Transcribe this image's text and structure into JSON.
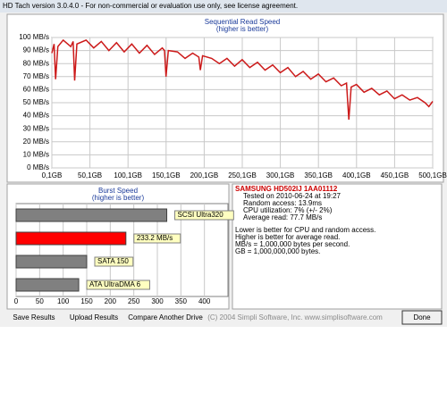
{
  "window": {
    "title": "HD Tach version 3.0.4.0  - For non-commercial or evaluation use only, see license agreement."
  },
  "chart_data": [
    {
      "type": "line",
      "title": "Sequential Read Speed",
      "subtitle": "(higher is better)",
      "color": "#cc1a1a",
      "x": [
        0.1,
        3,
        5,
        8,
        15,
        25,
        28,
        30,
        33,
        45,
        55,
        65,
        75,
        85,
        95,
        105,
        115,
        125,
        135,
        145,
        148,
        150,
        153,
        165,
        175,
        185,
        193,
        195,
        198,
        210,
        220,
        230,
        240,
        250,
        260,
        270,
        280,
        290,
        300,
        310,
        320,
        330,
        340,
        350,
        360,
        370,
        380,
        387,
        390,
        393,
        400,
        410,
        420,
        430,
        440,
        450,
        460,
        470,
        480,
        490,
        495,
        500.1
      ],
      "values": [
        88,
        95,
        68,
        93,
        98,
        93,
        97,
        67,
        95,
        98,
        92,
        97,
        90,
        96,
        89,
        95,
        88,
        94,
        87,
        92,
        90,
        70,
        90,
        89,
        84,
        88,
        85,
        75,
        86,
        84,
        80,
        84,
        78,
        83,
        77,
        81,
        75,
        79,
        73,
        77,
        70,
        74,
        68,
        72,
        66,
        69,
        63,
        65,
        37,
        62,
        64,
        58,
        61,
        56,
        59,
        53,
        56,
        52,
        54,
        50,
        47,
        51
      ],
      "xlim": [
        0.1,
        500.1
      ],
      "xticks": [
        {
          "value": 0.1,
          "label": "0,1GB"
        },
        {
          "value": 50.1,
          "label": "50,1GB"
        },
        {
          "value": 100.1,
          "label": "100,1GB"
        },
        {
          "value": 150.1,
          "label": "150,1GB"
        },
        {
          "value": 200.1,
          "label": "200,1GB"
        },
        {
          "value": 250.1,
          "label": "250,1GB"
        },
        {
          "value": 300.1,
          "label": "300,1GB"
        },
        {
          "value": 350.1,
          "label": "350,1GB"
        },
        {
          "value": 400.1,
          "label": "400,1GB"
        },
        {
          "value": 450.1,
          "label": "450,1GB"
        },
        {
          "value": 500.1,
          "label": "500,1GB"
        }
      ],
      "ylim": [
        0,
        100
      ],
      "yticks": [
        {
          "value": 0,
          "label": "0 MB/s"
        },
        {
          "value": 10,
          "label": "10 MB/s"
        },
        {
          "value": 20,
          "label": "20 MB/s"
        },
        {
          "value": 30,
          "label": "30 MB/s"
        },
        {
          "value": 40,
          "label": "40 MB/s"
        },
        {
          "value": 50,
          "label": "50 MB/s"
        },
        {
          "value": 60,
          "label": "60 MB/s"
        },
        {
          "value": 70,
          "label": "70 MB/s"
        },
        {
          "value": 80,
          "label": "80 MB/s"
        },
        {
          "value": 90,
          "label": "90 MB/s"
        },
        {
          "value": 100,
          "label": "100 MB/s"
        }
      ],
      "grid": true
    },
    {
      "type": "hbar",
      "title": "Burst Speed",
      "subtitle": "(higher is better)",
      "labels": [
        "SCSI Ultra320",
        "233.2 MB/s",
        "SATA 150",
        "ATA UltraDMA 6"
      ],
      "values": [
        320,
        233.2,
        150,
        133
      ],
      "colors": [
        "#808080",
        "#ff0000",
        "#808080",
        "#808080"
      ],
      "xlim": [
        0,
        450
      ],
      "xticks": [
        0,
        50,
        100,
        150,
        200,
        250,
        300,
        350,
        400
      ],
      "grid": true
    }
  ],
  "info": {
    "drive": "SAMSUNG HD502IJ 1AA01112",
    "lines": [
      "Tested on 2010-06-24 at 19:27",
      "Random access: 13.9ms",
      "CPU utilization: 7% (+/- 2%)",
      "Average read: 77.7 MB/s"
    ],
    "notes": [
      "Lower is better for CPU and random access.",
      "Higher is better for average read.",
      "MB/s = 1,000,000 bytes per second.",
      "GB = 1,000,000,000 bytes."
    ]
  },
  "buttons": {
    "save": "Save Results",
    "upload": "Upload Results",
    "compare": "Compare Another Drive",
    "done": "Done"
  },
  "copyright": "(C) 2004 Simpli Software, Inc. www.simplisoftware.com"
}
